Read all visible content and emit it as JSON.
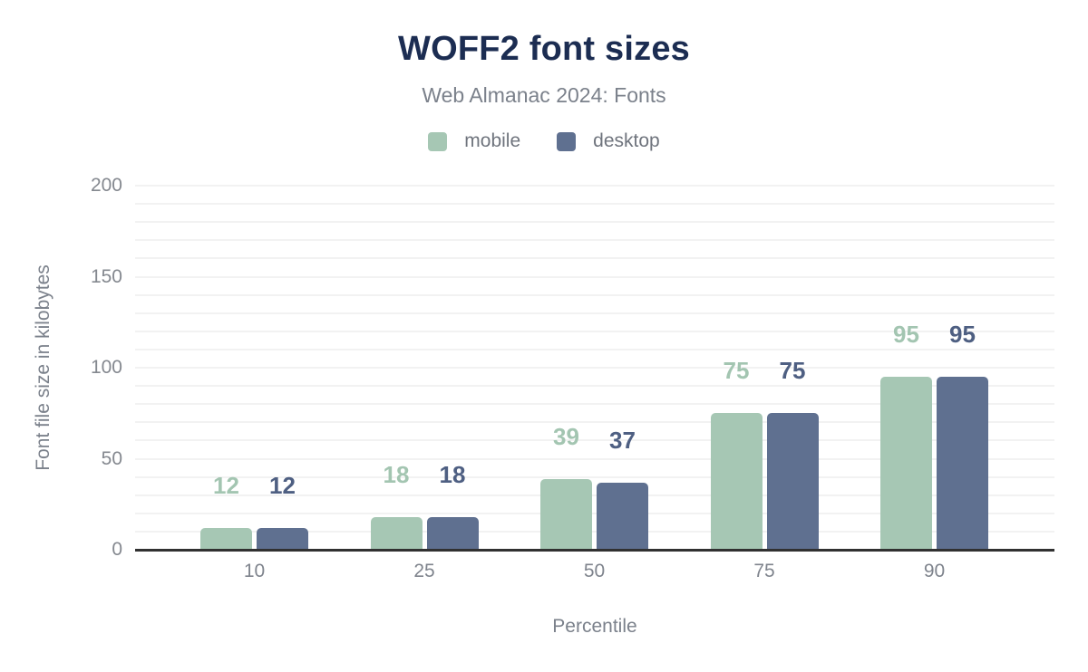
{
  "header": {
    "title": "WOFF2 font sizes",
    "subtitle": "Web Almanac 2024: Fonts"
  },
  "chart_data": {
    "type": "bar",
    "categories": [
      "10",
      "25",
      "50",
      "75",
      "90"
    ],
    "series": [
      {
        "name": "mobile",
        "values": [
          12,
          18,
          39,
          75,
          95
        ],
        "color": "#a6c7b4",
        "label_color": "#a3c5b1"
      },
      {
        "name": "desktop",
        "values": [
          12,
          18,
          37,
          75,
          95
        ],
        "color": "#5f7090",
        "label_color": "#4e5f82"
      }
    ],
    "title": "WOFF2 font sizes",
    "subtitle": "Web Almanac 2024: Fonts",
    "xlabel": "Percentile",
    "ylabel": "Font file size in kilobytes",
    "ylim": [
      0,
      200
    ],
    "yticks": [
      0,
      50,
      100,
      150,
      200
    ],
    "grid_step": 10,
    "grid": true,
    "legend_position": "top"
  },
  "colors": {
    "title": "#1c2d52",
    "subtitle_text": "#7b818b",
    "tick_text": "#84888f",
    "legend_text": "#6f747d",
    "grid": "#f2f2f2",
    "axis": "#313131",
    "background": "#ffffff"
  }
}
